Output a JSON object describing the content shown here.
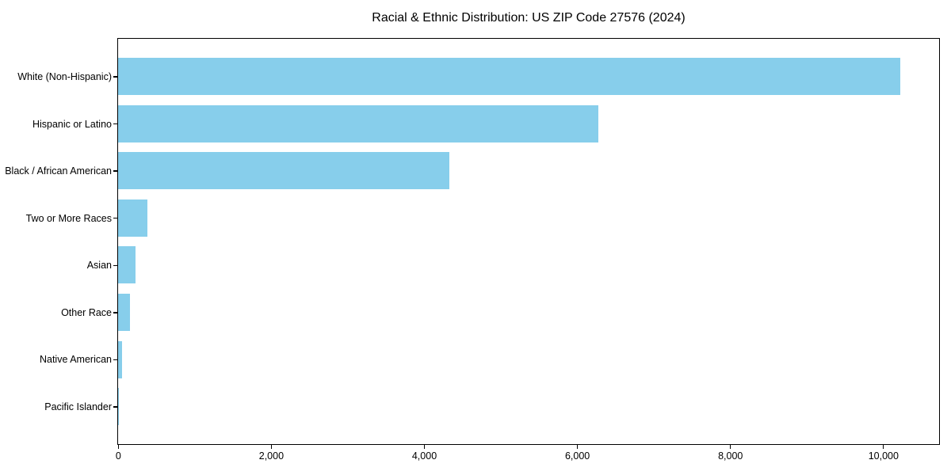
{
  "chart_data": {
    "type": "bar",
    "orientation": "horizontal",
    "title": "Racial & Ethnic Distribution: US ZIP Code 27576 (2024)",
    "categories": [
      "White (Non-Hispanic)",
      "Hispanic or Latino",
      "Black / African American",
      "Two or More Races",
      "Asian",
      "Other Race",
      "Native American",
      "Pacific Islander"
    ],
    "values": [
      10220,
      6280,
      4330,
      385,
      230,
      155,
      50,
      5
    ],
    "xlabel": "",
    "ylabel": "",
    "xlim": [
      0,
      10730
    ],
    "xticks": [
      0,
      2000,
      4000,
      6000,
      8000,
      10000
    ],
    "xtick_labels": [
      "0",
      "2,000",
      "4,000",
      "6,000",
      "8,000",
      "10,000"
    ],
    "bar_color": "#87CEEB",
    "spine_color": "#000000",
    "text_color": "#000000",
    "grid": false,
    "legend": null
  }
}
